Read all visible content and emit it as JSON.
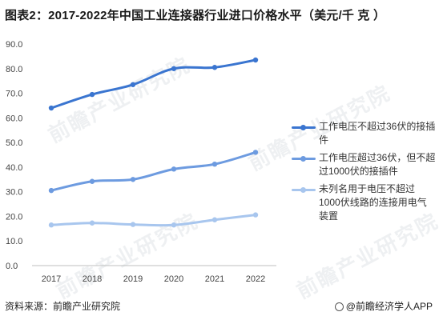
{
  "title": "图表2：2017-2022年中国工业连接器行业进口价格水平（美元/千 克 ）",
  "footer": {
    "source": "资料来源：前瞻产业研究院",
    "brand": "@前瞻经济学人APP"
  },
  "watermark": "前瞻产业研究院",
  "colors": {
    "series1": "#3a75d0",
    "series2": "#6d9be0",
    "series3": "#a8c6ee",
    "axis": "#bfbfbf"
  },
  "chart_data": {
    "type": "line",
    "title": "图表2：2017-2022年中国工业连接器行业进口价格水平（美元/千 克 ）",
    "x": [
      "2017",
      "2018",
      "2019",
      "2020",
      "2021",
      "2022"
    ],
    "ylim": [
      0,
      90
    ],
    "yticks": [
      "0.0",
      "10.0",
      "20.0",
      "30.0",
      "40.0",
      "50.0",
      "60.0",
      "70.0",
      "80.0",
      "90.0"
    ],
    "grid": false,
    "legend": "right",
    "series": [
      {
        "name": "工作电压不超过36伏的接插件",
        "values": [
          64.0,
          69.5,
          73.5,
          80.0,
          80.5,
          83.5
        ]
      },
      {
        "name": "工作电压超过36伏，但不超过1000伏的接插件",
        "values": [
          30.5,
          34.2,
          35.0,
          39.2,
          41.2,
          46.0
        ]
      },
      {
        "name": "未列名用于电压不超过1000伏线路的连接用电气装置",
        "values": [
          16.5,
          17.3,
          16.7,
          16.5,
          18.6,
          20.6
        ]
      }
    ]
  }
}
